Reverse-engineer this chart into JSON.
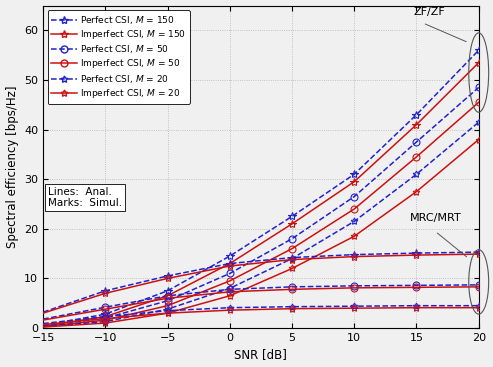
{
  "snr_db": [
    -15,
    -10,
    -5,
    0,
    5,
    10,
    15,
    20
  ],
  "xlabel": "SNR [dB]",
  "ylabel": "Spectral efficiency [bps/Hz]",
  "xlim": [
    -15,
    20
  ],
  "ylim": [
    0,
    65
  ],
  "yticks": [
    0,
    10,
    20,
    30,
    40,
    50,
    60
  ],
  "xticks": [
    -15,
    -10,
    -5,
    0,
    5,
    10,
    15,
    20
  ],
  "zf_perfect_M150": [
    0.5,
    2.8,
    7.5,
    14.5,
    22.5,
    31.0,
    43.0,
    56.0
  ],
  "zf_imperfect_M150": [
    0.4,
    2.3,
    6.5,
    13.0,
    21.0,
    29.5,
    41.0,
    53.5
  ],
  "zf_perfect_M50": [
    0.4,
    2.0,
    5.5,
    11.0,
    18.0,
    26.5,
    37.5,
    48.5
  ],
  "zf_imperfect_M50": [
    0.3,
    1.6,
    4.5,
    9.5,
    16.0,
    24.0,
    34.5,
    45.5
  ],
  "zf_perfect_M20": [
    0.3,
    1.3,
    3.8,
    8.0,
    14.0,
    21.5,
    31.0,
    41.5
  ],
  "zf_imperfect_M20": [
    0.2,
    1.0,
    3.0,
    6.5,
    12.0,
    18.5,
    27.5,
    38.0
  ],
  "mrc_perfect_M150": [
    3.2,
    7.5,
    10.5,
    13.0,
    14.2,
    14.8,
    15.1,
    15.3
  ],
  "mrc_imperfect_M150": [
    3.0,
    7.0,
    10.0,
    12.5,
    13.8,
    14.4,
    14.7,
    14.9
  ],
  "mrc_perfect_M50": [
    1.8,
    4.2,
    6.5,
    7.8,
    8.3,
    8.5,
    8.6,
    8.7
  ],
  "mrc_imperfect_M50": [
    1.6,
    3.8,
    6.0,
    7.3,
    7.8,
    8.1,
    8.2,
    8.3
  ],
  "mrc_perfect_M20": [
    0.9,
    2.3,
    3.5,
    4.1,
    4.3,
    4.4,
    4.5,
    4.5
  ],
  "mrc_imperfect_M20": [
    0.7,
    1.9,
    3.0,
    3.6,
    3.9,
    4.0,
    4.1,
    4.1
  ],
  "sim_snr": [
    -10,
    -5,
    0,
    5,
    10,
    15,
    20
  ],
  "sim_zf_perfect_M150": [
    2.8,
    7.5,
    14.5,
    22.5,
    31.0,
    43.0,
    56.0
  ],
  "sim_zf_imperfect_M150": [
    2.3,
    6.5,
    13.0,
    21.0,
    29.5,
    41.0,
    53.5
  ],
  "sim_zf_perfect_M50": [
    2.0,
    5.5,
    11.0,
    18.0,
    26.5,
    37.5,
    48.5
  ],
  "sim_zf_imperfect_M50": [
    1.6,
    4.5,
    9.5,
    16.0,
    24.0,
    34.5,
    45.5
  ],
  "sim_zf_perfect_M20": [
    1.3,
    3.8,
    8.0,
    14.0,
    21.5,
    31.0,
    41.5
  ],
  "sim_zf_imperfect_M20": [
    1.0,
    3.0,
    6.5,
    12.0,
    18.5,
    27.5,
    38.0
  ],
  "sim_mrc_perfect_M150": [
    7.5,
    10.5,
    13.0,
    14.2,
    14.8,
    15.1,
    15.3
  ],
  "sim_mrc_imperfect_M150": [
    7.0,
    10.0,
    12.5,
    13.8,
    14.4,
    14.7,
    14.9
  ],
  "sim_mrc_perfect_M50": [
    4.2,
    6.5,
    7.8,
    8.3,
    8.5,
    8.6,
    8.7
  ],
  "sim_mrc_imperfect_M50": [
    3.8,
    6.0,
    7.3,
    7.8,
    8.1,
    8.2,
    8.3
  ],
  "sim_mrc_perfect_M20": [
    2.3,
    3.5,
    4.1,
    4.3,
    4.4,
    4.5,
    4.5
  ],
  "sim_mrc_imperfect_M20": [
    1.9,
    3.0,
    3.6,
    3.9,
    4.0,
    4.1,
    4.1
  ],
  "blue": "#2222CC",
  "red": "#CC1111",
  "background": "#F0F0F0"
}
